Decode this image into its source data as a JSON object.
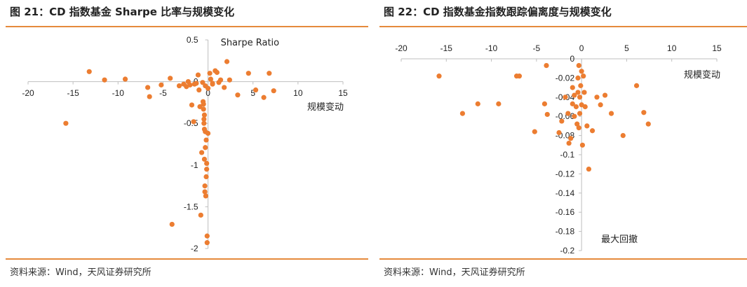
{
  "colors": {
    "accent": "#e58a3c",
    "marker": "#ec7d31",
    "axis": "#bfbfbf"
  },
  "panels": [
    {
      "title": "图 21：CD 指数基金 Sharpe 比率与规模变化",
      "source": "资料来源：Wind，天风证券研究所"
    },
    {
      "title": "图 22：CD 指数基金指数跟踪偏离度与规模变化",
      "source": "资料来源：Wind，天风证券研究所"
    }
  ],
  "chart_data": [
    {
      "type": "scatter",
      "xlabel": "规模变动",
      "ylabel": "Sharpe Ratio",
      "xlim": [
        -20,
        15
      ],
      "ylim": [
        -2,
        0.5
      ],
      "x_ticks": [
        "-20",
        "-15",
        "-10",
        "-5",
        "0",
        "5",
        "10",
        "15"
      ],
      "y_ticks": [
        "0.5",
        "0",
        "-0.5",
        "-1",
        "-1.5",
        "-2"
      ],
      "grid": false,
      "legend": "none",
      "points": [
        [
          -15.8,
          -0.5
        ],
        [
          -13.2,
          0.12
        ],
        [
          -11.5,
          0.02
        ],
        [
          -9.2,
          0.03
        ],
        [
          -6.7,
          -0.07
        ],
        [
          -6.5,
          -0.18
        ],
        [
          -5.2,
          -0.04
        ],
        [
          -4.2,
          0.04
        ],
        [
          -4.0,
          -1.71
        ],
        [
          -3.2,
          -0.05
        ],
        [
          -2.7,
          -0.03
        ],
        [
          -2.4,
          -0.06
        ],
        [
          -2.2,
          0.0
        ],
        [
          -2.0,
          -0.04
        ],
        [
          -1.8,
          -0.28
        ],
        [
          -1.6,
          -0.48
        ],
        [
          -1.5,
          -0.03
        ],
        [
          -1.3,
          -0.02
        ],
        [
          -1.1,
          0.08
        ],
        [
          -1.0,
          -0.1
        ],
        [
          -0.9,
          -0.3
        ],
        [
          -0.8,
          -1.6
        ],
        [
          -0.7,
          -0.85
        ],
        [
          -0.6,
          -0.01
        ],
        [
          -0.55,
          -0.24
        ],
        [
          -0.5,
          -0.27
        ],
        [
          -0.5,
          -0.33
        ],
        [
          -0.45,
          -0.45
        ],
        [
          -0.45,
          -0.5
        ],
        [
          -0.4,
          -0.4
        ],
        [
          -0.4,
          -0.57
        ],
        [
          -0.4,
          -0.93
        ],
        [
          -0.35,
          -1.25
        ],
        [
          -0.35,
          -1.32
        ],
        [
          -0.3,
          -0.05
        ],
        [
          -0.3,
          -0.6
        ],
        [
          -0.3,
          -0.79
        ],
        [
          -0.25,
          -1.37
        ],
        [
          -0.2,
          -0.7
        ],
        [
          -0.2,
          -1.14
        ],
        [
          -0.15,
          -0.98
        ],
        [
          -0.15,
          -1.05
        ],
        [
          -0.1,
          -1.85
        ],
        [
          -0.1,
          -1.93
        ],
        [
          0.0,
          -0.08
        ],
        [
          0.0,
          -0.62
        ],
        [
          0.2,
          0.1
        ],
        [
          0.3,
          0.03
        ],
        [
          0.5,
          -0.02
        ],
        [
          0.5,
          -0.03
        ],
        [
          0.8,
          0.13
        ],
        [
          1.0,
          0.11
        ],
        [
          1.2,
          -0.01
        ],
        [
          1.4,
          0.02
        ],
        [
          1.8,
          -0.07
        ],
        [
          2.1,
          0.24
        ],
        [
          2.4,
          0.02
        ],
        [
          3.3,
          -0.16
        ],
        [
          4.5,
          0.1
        ],
        [
          5.3,
          -0.1
        ],
        [
          6.2,
          -0.19
        ],
        [
          6.8,
          0.1
        ],
        [
          7.3,
          -0.11
        ]
      ]
    },
    {
      "type": "scatter",
      "xlabel": "规模变动",
      "ylabel": "最大回撤",
      "xlim": [
        -20,
        15
      ],
      "ylim": [
        -0.2,
        0
      ],
      "x_ticks": [
        "-20",
        "-15",
        "-10",
        "-5",
        "0",
        "5",
        "10",
        "15"
      ],
      "y_ticks": [
        "0",
        "-0.02",
        "-0.04",
        "-0.06",
        "-0.08",
        "-0.1",
        "-0.12",
        "-0.14",
        "-0.16",
        "-0.18",
        "-0.2"
      ],
      "grid": false,
      "legend": "none",
      "points": [
        [
          -15.8,
          -0.018
        ],
        [
          -13.2,
          -0.057
        ],
        [
          -11.5,
          -0.047
        ],
        [
          -9.2,
          -0.047
        ],
        [
          -7.2,
          -0.018
        ],
        [
          -6.9,
          -0.018
        ],
        [
          -5.2,
          -0.076
        ],
        [
          -4.1,
          -0.047
        ],
        [
          -3.9,
          -0.007
        ],
        [
          -3.8,
          -0.058
        ],
        [
          -2.5,
          -0.077
        ],
        [
          -2.2,
          -0.065
        ],
        [
          -1.8,
          -0.04
        ],
        [
          -1.5,
          -0.057
        ],
        [
          -1.4,
          -0.088
        ],
        [
          -1.2,
          -0.083
        ],
        [
          -1.0,
          -0.03
        ],
        [
          -1.0,
          -0.047
        ],
        [
          -0.8,
          -0.038
        ],
        [
          -0.8,
          -0.06
        ],
        [
          -0.6,
          -0.05
        ],
        [
          -0.5,
          -0.068
        ],
        [
          -0.4,
          -0.02
        ],
        [
          -0.4,
          -0.035
        ],
        [
          -0.3,
          -0.007
        ],
        [
          -0.3,
          -0.072
        ],
        [
          -0.2,
          -0.04
        ],
        [
          -0.2,
          -0.057
        ],
        [
          -0.1,
          -0.028
        ],
        [
          0.0,
          -0.013
        ],
        [
          0.0,
          -0.048
        ],
        [
          0.1,
          -0.09
        ],
        [
          0.2,
          -0.018
        ],
        [
          0.3,
          -0.035
        ],
        [
          0.4,
          -0.05
        ],
        [
          0.6,
          -0.07
        ],
        [
          0.8,
          -0.115
        ],
        [
          1.2,
          -0.075
        ],
        [
          1.7,
          -0.04
        ],
        [
          2.1,
          -0.048
        ],
        [
          2.6,
          -0.038
        ],
        [
          3.3,
          -0.057
        ],
        [
          4.6,
          -0.08
        ],
        [
          6.1,
          -0.028
        ],
        [
          6.9,
          -0.056
        ],
        [
          7.4,
          -0.068
        ]
      ]
    }
  ]
}
